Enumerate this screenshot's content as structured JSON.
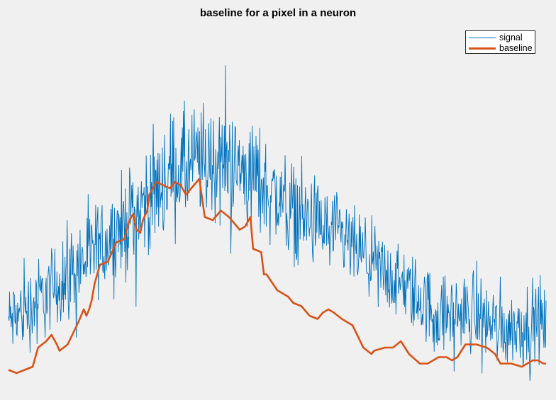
{
  "chart_data": {
    "type": "line",
    "title": "baseline for a pixel in a neuron",
    "xlabel": "",
    "ylabel": "",
    "grid": false,
    "axes_visible": false,
    "legend_position": "top-right",
    "xlim": [
      0,
      1000
    ],
    "ylim": [
      0,
      100
    ],
    "series": [
      {
        "name": "signal",
        "color": "#0072bd",
        "style": "thin-noisy-line",
        "envelope": {
          "x": [
            0,
            80,
            160,
            230,
            300,
            350,
            400,
            460,
            520,
            600,
            650,
            700,
            760,
            800,
            860,
            920,
            1000
          ],
          "center": [
            20,
            30,
            42,
            53,
            66,
            70,
            70,
            65,
            56,
            48,
            42,
            35,
            28,
            22,
            23,
            18,
            20
          ],
          "spread": [
            18,
            20,
            22,
            24,
            26,
            28,
            28,
            26,
            22,
            20,
            18,
            18,
            18,
            18,
            18,
            18,
            18
          ]
        },
        "samples": 1000
      },
      {
        "name": "baseline",
        "color": "#d95319",
        "style": "thick-line",
        "x": [
          0,
          15,
          45,
          55,
          70,
          80,
          90,
          95,
          110,
          130,
          140,
          145,
          150,
          155,
          160,
          170,
          185,
          200,
          215,
          225,
          232,
          238,
          245,
          250,
          258,
          262,
          275,
          300,
          310,
          320,
          330,
          340,
          345,
          355,
          365,
          380,
          395,
          410,
          420,
          430,
          440,
          450,
          455,
          470,
          475,
          480,
          500,
          520,
          530,
          545,
          560,
          575,
          585,
          595,
          605,
          620,
          640,
          660,
          675,
          680,
          700,
          715,
          730,
          745,
          765,
          780,
          800,
          815,
          825,
          835,
          850,
          870,
          890,
          905,
          915,
          935,
          955,
          975,
          985,
          995,
          1000
        ],
        "y": [
          5,
          4,
          6,
          12,
          14,
          16,
          13,
          11,
          13,
          20,
          24,
          22,
          24,
          27,
          32,
          38,
          39,
          45,
          46,
          52,
          54,
          49,
          48,
          52,
          55,
          60,
          64,
          62,
          64,
          63,
          60,
          62,
          63,
          65,
          53,
          52,
          55,
          53,
          51,
          49,
          50,
          53,
          43,
          42,
          35,
          35,
          30,
          28,
          26,
          25,
          22,
          21,
          23,
          24,
          23,
          21,
          19,
          12,
          10,
          11,
          12,
          12,
          14,
          10,
          7,
          7,
          9,
          9,
          8,
          9,
          13,
          13,
          12,
          10,
          7,
          7,
          6,
          8,
          8,
          7,
          7
        ]
      }
    ]
  }
}
